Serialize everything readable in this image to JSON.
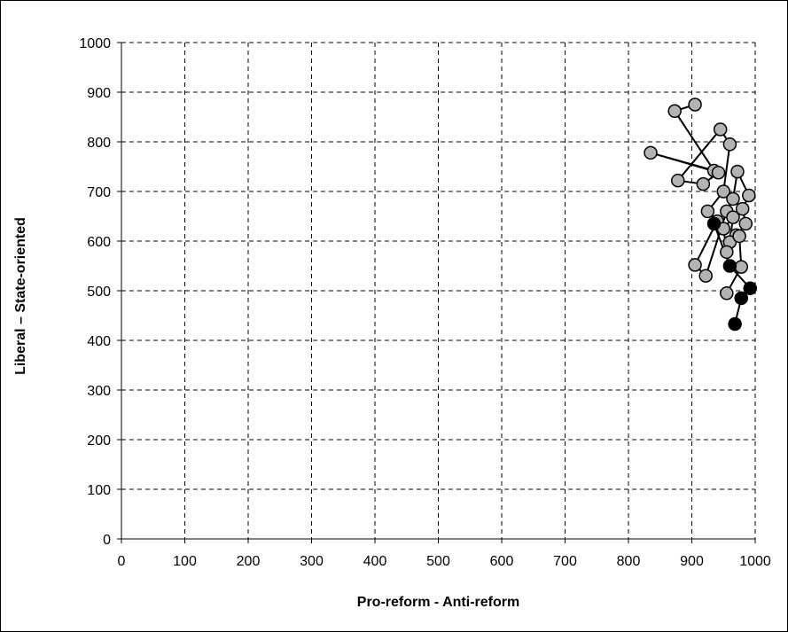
{
  "chart_data": {
    "type": "scatter",
    "title": "",
    "xlabel": "Pro-reform  -  Anti-reform",
    "ylabel": "Liberal  –  State-oriented",
    "xlim": [
      0,
      1000
    ],
    "ylim": [
      0,
      1000
    ],
    "xticks": [
      0,
      100,
      200,
      300,
      400,
      500,
      600,
      700,
      800,
      900,
      1000
    ],
    "yticks": [
      0,
      100,
      200,
      300,
      400,
      500,
      600,
      700,
      800,
      900,
      1000
    ],
    "grid": true,
    "grid_style": "dashed",
    "legend": "none",
    "colors": {
      "gray_marker": "#b3b3b3",
      "black_marker": "#000000",
      "line": "#000000",
      "grid": "#000000"
    },
    "series": [
      {
        "marker_color": "gray",
        "connected": true,
        "points": [
          [
            905,
            875
          ],
          [
            873,
            862
          ],
          [
            935,
            742
          ],
          [
            835,
            778
          ],
          [
            942,
            738
          ],
          [
            918,
            715
          ],
          [
            878,
            722
          ],
          [
            945,
            825
          ],
          [
            960,
            795
          ],
          [
            950,
            700
          ],
          [
            925,
            660
          ],
          [
            940,
            640
          ],
          [
            905,
            552
          ],
          [
            922,
            530
          ],
          [
            955,
            660
          ],
          [
            965,
            685
          ],
          [
            972,
            740
          ],
          [
            990,
            692
          ],
          [
            980,
            665
          ],
          [
            985,
            635
          ],
          [
            970,
            612
          ],
          [
            960,
            598
          ],
          [
            965,
            648
          ],
          [
            950,
            625
          ],
          [
            955,
            578
          ],
          [
            975,
            610
          ],
          [
            978,
            548
          ],
          [
            955,
            495
          ]
        ]
      },
      {
        "marker_color": "black",
        "connected": true,
        "points": [
          [
            935,
            635
          ],
          [
            960,
            550
          ],
          [
            992,
            505
          ],
          [
            978,
            485
          ],
          [
            968,
            433
          ]
        ]
      }
    ]
  }
}
